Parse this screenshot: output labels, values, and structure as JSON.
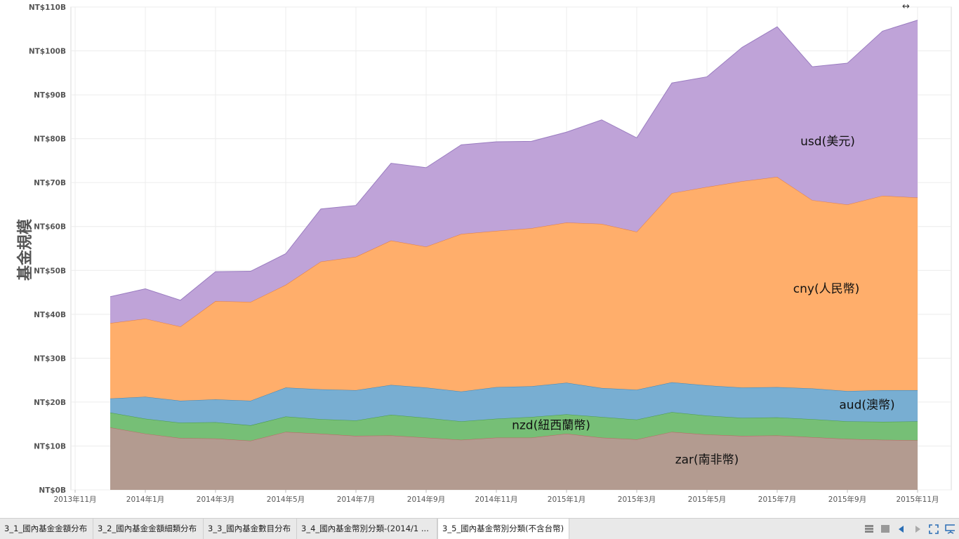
{
  "chart_data": {
    "type": "area",
    "stacked": true,
    "title": "",
    "xlabel": "",
    "ylabel": "基金規模",
    "ylim": [
      0,
      110
    ],
    "y_ticks": [
      "NT$0B",
      "NT$10B",
      "NT$20B",
      "NT$30B",
      "NT$40B",
      "NT$50B",
      "NT$60B",
      "NT$70B",
      "NT$80B",
      "NT$90B",
      "NT$100B",
      "NT$110B"
    ],
    "x_tick_labels": [
      "2013年11月",
      "2014年1月",
      "2014年3月",
      "2014年5月",
      "2014年7月",
      "2014年9月",
      "2014年11月",
      "2015年1月",
      "2015年3月",
      "2015年5月",
      "2015年7月",
      "2015年9月",
      "2015年11月"
    ],
    "x": [
      "2013-12",
      "2014-01",
      "2014-02",
      "2014-03",
      "2014-04",
      "2014-05",
      "2014-06",
      "2014-07",
      "2014-08",
      "2014-09",
      "2014-10",
      "2014-11",
      "2014-12",
      "2015-01",
      "2015-02",
      "2015-03",
      "2015-04",
      "2015-05",
      "2015-06",
      "2015-07",
      "2015-08",
      "2015-09",
      "2015-10",
      "2015-11"
    ],
    "grid": true,
    "series": [
      {
        "name": "zar(南非幣)",
        "color": "#b39b90",
        "stroke": "#c06060",
        "values": [
          14.2,
          12.8,
          11.8,
          11.7,
          11.2,
          13.2,
          12.8,
          12.3,
          12.4,
          11.9,
          11.4,
          11.9,
          11.9,
          12.8,
          11.9,
          11.5,
          13.2,
          12.6,
          12.3,
          12.4,
          12.0,
          11.6,
          11.4,
          11.3
        ]
      },
      {
        "name": "nzd(紐西蘭幣)",
        "color": "#76bf76",
        "stroke": "#4a9a4a",
        "values": [
          3.4,
          3.4,
          3.5,
          3.7,
          3.5,
          3.5,
          3.3,
          3.5,
          4.7,
          4.5,
          4.2,
          4.3,
          4.7,
          4.4,
          4.7,
          4.5,
          4.5,
          4.3,
          4.1,
          4.1,
          4.1,
          4.0,
          4.1,
          4.3
        ]
      },
      {
        "name": "aud(澳幣)",
        "color": "#78aed2",
        "stroke": "#3d86b8",
        "values": [
          3.2,
          5.0,
          5.0,
          5.2,
          5.6,
          6.6,
          6.8,
          6.9,
          6.8,
          6.9,
          6.8,
          7.2,
          7.0,
          7.2,
          6.6,
          6.8,
          6.8,
          6.9,
          6.9,
          6.9,
          7.0,
          6.9,
          7.2,
          7.1
        ]
      },
      {
        "name": "cny(人民幣)",
        "color": "#ffae6b",
        "stroke": "#e07a40",
        "values": [
          17.2,
          17.8,
          16.9,
          22.4,
          22.5,
          23.4,
          29.1,
          30.4,
          32.9,
          32.1,
          35.9,
          35.6,
          36.0,
          36.5,
          37.4,
          36.0,
          43.1,
          45.2,
          47.0,
          47.9,
          42.9,
          42.5,
          44.3,
          43.9
        ]
      },
      {
        "name": "usd(美元)",
        "color": "#bfa3d8",
        "stroke": "#9a7cc0",
        "values": [
          6.0,
          6.8,
          6.0,
          6.7,
          7.0,
          7.1,
          12.0,
          11.7,
          17.6,
          18.0,
          20.3,
          20.3,
          19.8,
          20.6,
          23.7,
          21.4,
          25.1,
          25.1,
          30.5,
          34.2,
          30.4,
          32.2,
          37.5,
          40.4
        ]
      }
    ]
  },
  "tabs": [
    {
      "label": "3_1_國內基金金額分布"
    },
    {
      "label": "3_2_國內基金金額細類分布"
    },
    {
      "label": "3_3_國內基金數目分布"
    },
    {
      "label": "3_4_國內基金幣別分類-(2014/1 ..."
    },
    {
      "label": "3_5_國內基金幣別分類(不含台幣)"
    }
  ],
  "toolbar_icons": [
    "grid-view-icon",
    "single-view-icon",
    "prev-tab-icon",
    "next-tab-icon",
    "fullscreen-icon",
    "presentation-icon"
  ],
  "resize_icon": "↔"
}
